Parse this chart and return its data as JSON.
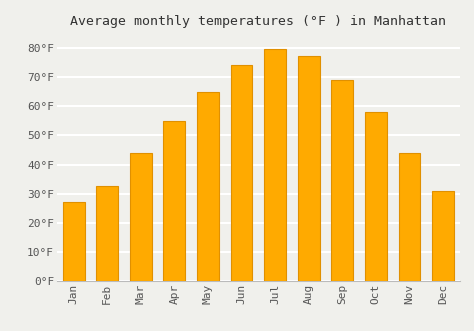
{
  "title": "Average monthly temperatures (°F ) in Manhattan",
  "months": [
    "Jan",
    "Feb",
    "Mar",
    "Apr",
    "May",
    "Jun",
    "Jul",
    "Aug",
    "Sep",
    "Oct",
    "Nov",
    "Dec"
  ],
  "values": [
    27,
    32.5,
    44,
    55,
    65,
    74,
    79.5,
    77,
    69,
    58,
    44,
    31
  ],
  "bar_color": "#FFAA00",
  "bar_edge_color": "#E09000",
  "ylim": [
    0,
    85
  ],
  "yticks": [
    0,
    10,
    20,
    30,
    40,
    50,
    60,
    70,
    80
  ],
  "ytick_labels": [
    "0°F",
    "10°F",
    "20°F",
    "30°F",
    "40°F",
    "50°F",
    "60°F",
    "70°F",
    "80°F"
  ],
  "background_color": "#f0f0ec",
  "plot_bg_color": "#f0f0ec",
  "grid_color": "#ffffff",
  "title_fontsize": 9.5,
  "tick_fontsize": 8,
  "bar_width": 0.65
}
